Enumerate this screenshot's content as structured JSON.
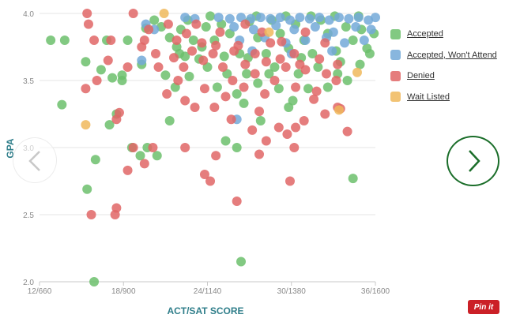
{
  "chart_data": {
    "type": "scatter",
    "xlabel": "ACT/SAT SCORE",
    "ylabel": "GPA",
    "x_ticks": [
      "12/660",
      "18/900",
      "24/1140",
      "30/1380",
      "36/1600"
    ],
    "x_tick_values": [
      12,
      18,
      24,
      30,
      36
    ],
    "y_ticks": [
      "2.0",
      "2.5",
      "3.0",
      "3.5",
      "4.0"
    ],
    "y_tick_values": [
      2.0,
      2.5,
      3.0,
      3.5,
      4.0
    ],
    "xlim": [
      12,
      36
    ],
    "ylim": [
      2.0,
      4.0
    ],
    "grid": "horizontal",
    "legend_position": "right",
    "series": [
      {
        "name": "Accepted",
        "color": "#6cc06c",
        "points": [
          [
            12.8,
            3.8
          ],
          [
            13.8,
            3.8
          ],
          [
            15.3,
            3.64
          ],
          [
            16.4,
            3.58
          ],
          [
            17.2,
            3.52
          ],
          [
            17.9,
            3.5
          ],
          [
            17.9,
            3.54
          ],
          [
            16.8,
            3.8
          ],
          [
            18.3,
            3.8
          ],
          [
            19.6,
            3.89
          ],
          [
            20.2,
            3.95
          ],
          [
            19.3,
            3.62
          ],
          [
            20.7,
            3.9
          ],
          [
            21.3,
            3.82
          ],
          [
            21.8,
            3.75
          ],
          [
            21,
            3.54
          ],
          [
            21.7,
            3.45
          ],
          [
            22,
            3.7
          ],
          [
            22.6,
            3.95
          ],
          [
            23,
            3.8
          ],
          [
            22.7,
            3.53
          ],
          [
            23.4,
            3.66
          ],
          [
            23.9,
            3.9
          ],
          [
            24.5,
            3.8
          ],
          [
            25,
            3.92
          ],
          [
            25.6,
            3.85
          ],
          [
            26.3,
            3.7
          ],
          [
            27,
            3.94
          ],
          [
            27.6,
            3.82
          ],
          [
            28.2,
            3.7
          ],
          [
            28.6,
            3.95
          ],
          [
            29.2,
            3.85
          ],
          [
            29.8,
            3.74
          ],
          [
            30.3,
            3.92
          ],
          [
            30.9,
            3.8
          ],
          [
            31.5,
            3.7
          ],
          [
            32.1,
            3.95
          ],
          [
            32.6,
            3.85
          ],
          [
            33.2,
            3.72
          ],
          [
            33.9,
            3.9
          ],
          [
            34.4,
            3.8
          ],
          [
            35,
            3.88
          ],
          [
            35.6,
            3.7
          ],
          [
            35.9,
            3.85
          ],
          [
            24,
            3.6
          ],
          [
            24.7,
            3.45
          ],
          [
            25.4,
            3.55
          ],
          [
            26.1,
            3.4
          ],
          [
            26.8,
            3.55
          ],
          [
            27.6,
            3.48
          ],
          [
            28.4,
            3.55
          ],
          [
            29.1,
            3.44
          ],
          [
            29.8,
            3.3
          ],
          [
            30.5,
            3.55
          ],
          [
            31.2,
            3.44
          ],
          [
            31.9,
            3.6
          ],
          [
            32.6,
            3.45
          ],
          [
            33.3,
            3.55
          ],
          [
            34,
            3.5
          ],
          [
            35.4,
            3.74
          ],
          [
            13.6,
            3.32
          ],
          [
            17.5,
            3.25
          ],
          [
            17,
            3.17
          ],
          [
            19.7,
            3.0
          ],
          [
            18.6,
            3.0
          ],
          [
            20.4,
            2.94
          ],
          [
            16,
            2.91
          ],
          [
            19.2,
            2.94
          ],
          [
            21.3,
            3.2
          ],
          [
            15.4,
            2.69
          ],
          [
            15.9,
            2.0
          ],
          [
            26.4,
            2.15
          ],
          [
            25.3,
            3.05
          ],
          [
            26.1,
            3.0
          ],
          [
            34.4,
            2.77
          ],
          [
            22.4,
            3.68
          ],
          [
            23.6,
            3.75
          ],
          [
            25.2,
            3.68
          ],
          [
            26.9,
            3.67
          ],
          [
            28.8,
            3.6
          ],
          [
            30.7,
            3.67
          ],
          [
            33.5,
            3.64
          ],
          [
            34.9,
            3.62
          ],
          [
            22.1,
            3.88
          ],
          [
            24.2,
            3.98
          ],
          [
            27.5,
            3.98
          ],
          [
            29.6,
            3.98
          ],
          [
            31.4,
            3.98
          ],
          [
            33.1,
            3.98
          ],
          [
            34.8,
            3.98
          ],
          [
            26.6,
            3.33
          ],
          [
            27.8,
            3.2
          ],
          [
            30.1,
            3.35
          ]
        ]
      },
      {
        "name": "Accepted, Won't Attend",
        "color": "#73a9d8",
        "points": [
          [
            19.6,
            3.92
          ],
          [
            20.2,
            3.88
          ],
          [
            19.3,
            3.65
          ],
          [
            22.4,
            3.97
          ],
          [
            23.1,
            3.96
          ],
          [
            24.8,
            3.97
          ],
          [
            25.6,
            3.96
          ],
          [
            26.4,
            3.97
          ],
          [
            27.1,
            3.96
          ],
          [
            27.8,
            3.97
          ],
          [
            28.5,
            3.96
          ],
          [
            29.2,
            3.97
          ],
          [
            29.9,
            3.95
          ],
          [
            30.6,
            3.97
          ],
          [
            31.3,
            3.96
          ],
          [
            32,
            3.97
          ],
          [
            32.7,
            3.95
          ],
          [
            33.4,
            3.97
          ],
          [
            34.1,
            3.96
          ],
          [
            34.8,
            3.97
          ],
          [
            35.5,
            3.95
          ],
          [
            36,
            3.97
          ],
          [
            25.9,
            3.9
          ],
          [
            27.3,
            3.88
          ],
          [
            28.9,
            3.91
          ],
          [
            30.2,
            3.88
          ],
          [
            31.7,
            3.9
          ],
          [
            33,
            3.86
          ],
          [
            34.6,
            3.9
          ],
          [
            35.7,
            3.88
          ],
          [
            26.3,
            3.8
          ],
          [
            28.1,
            3.82
          ],
          [
            29.6,
            3.78
          ],
          [
            31,
            3.8
          ],
          [
            32.5,
            3.82
          ],
          [
            33.8,
            3.78
          ],
          [
            35.2,
            3.8
          ],
          [
            27.2,
            3.72
          ],
          [
            30,
            3.7
          ],
          [
            32.9,
            3.72
          ],
          [
            26.1,
            3.21
          ]
        ]
      },
      {
        "name": "Denied",
        "color": "#e06666",
        "points": [
          [
            15.4,
            4.0
          ],
          [
            15.5,
            3.92
          ],
          [
            15.9,
            3.8
          ],
          [
            18.7,
            4.0
          ],
          [
            17.1,
            3.8
          ],
          [
            15.3,
            3.44
          ],
          [
            16.1,
            3.5
          ],
          [
            17.5,
            3.21
          ],
          [
            17.7,
            3.26
          ],
          [
            16.9,
            3.65
          ],
          [
            18.3,
            3.6
          ],
          [
            19.3,
            3.75
          ],
          [
            19.5,
            3.8
          ],
          [
            18.7,
            3.0
          ],
          [
            18.3,
            2.83
          ],
          [
            17.5,
            2.55
          ],
          [
            17.4,
            2.5
          ],
          [
            15.7,
            2.5
          ],
          [
            19.5,
            2.88
          ],
          [
            20.1,
            3.0
          ],
          [
            22.4,
            3.0
          ],
          [
            23.8,
            2.8
          ],
          [
            24.6,
            2.94
          ],
          [
            24.2,
            2.75
          ],
          [
            26.1,
            2.6
          ],
          [
            27.7,
            2.95
          ],
          [
            29.9,
            2.75
          ],
          [
            30.2,
            3.0
          ],
          [
            25.7,
            3.21
          ],
          [
            27.2,
            3.13
          ],
          [
            28.2,
            3.05
          ],
          [
            29.1,
            3.15
          ],
          [
            30.3,
            3.15
          ],
          [
            30.9,
            3.2
          ],
          [
            32.4,
            3.25
          ],
          [
            33.5,
            3.29
          ],
          [
            21.1,
            3.4
          ],
          [
            21.9,
            3.5
          ],
          [
            22.4,
            3.35
          ],
          [
            23.1,
            3.3
          ],
          [
            23.8,
            3.44
          ],
          [
            24.5,
            3.3
          ],
          [
            25.3,
            3.38
          ],
          [
            25.8,
            3.5
          ],
          [
            26.6,
            3.45
          ],
          [
            27.4,
            3.55
          ],
          [
            28.1,
            3.4
          ],
          [
            28.8,
            3.5
          ],
          [
            29.6,
            3.6
          ],
          [
            30.3,
            3.45
          ],
          [
            31,
            3.58
          ],
          [
            31.8,
            3.42
          ],
          [
            32.5,
            3.55
          ],
          [
            33.3,
            3.62
          ],
          [
            20.5,
            3.6
          ],
          [
            21.6,
            3.67
          ],
          [
            22.3,
            3.6
          ],
          [
            22.9,
            3.72
          ],
          [
            23.7,
            3.65
          ],
          [
            24.4,
            3.7
          ],
          [
            25.1,
            3.6
          ],
          [
            25.9,
            3.72
          ],
          [
            26.7,
            3.62
          ],
          [
            27.4,
            3.7
          ],
          [
            28.2,
            3.64
          ],
          [
            29.2,
            3.66
          ],
          [
            30.6,
            3.62
          ],
          [
            32,
            3.66
          ],
          [
            33.2,
            3.5
          ],
          [
            19.8,
            3.88
          ],
          [
            21.2,
            3.92
          ],
          [
            22.5,
            3.85
          ],
          [
            23.6,
            3.78
          ],
          [
            24.9,
            3.86
          ],
          [
            26.2,
            3.76
          ],
          [
            27.9,
            3.86
          ],
          [
            29.3,
            3.79
          ],
          [
            31,
            3.86
          ],
          [
            32.4,
            3.78
          ],
          [
            20.3,
            3.7
          ],
          [
            21.8,
            3.8
          ],
          [
            23.2,
            3.92
          ],
          [
            24.6,
            3.76
          ],
          [
            26.7,
            3.92
          ],
          [
            28.5,
            3.78
          ],
          [
            30.2,
            3.7
          ],
          [
            27.7,
            3.27
          ],
          [
            29.7,
            3.1
          ],
          [
            31.6,
            3.36
          ],
          [
            33.3,
            3.3
          ],
          [
            34,
            3.12
          ]
        ]
      },
      {
        "name": "Wait Listed",
        "color": "#f0b85c",
        "points": [
          [
            15.3,
            3.17
          ],
          [
            20.9,
            4.0
          ],
          [
            33.4,
            3.28
          ],
          [
            34.7,
            3.56
          ],
          [
            28.4,
            3.86
          ]
        ]
      }
    ]
  },
  "nav": {
    "prev_glyph": "‹",
    "next_glyph": "›"
  },
  "pin_label": "Pin it"
}
